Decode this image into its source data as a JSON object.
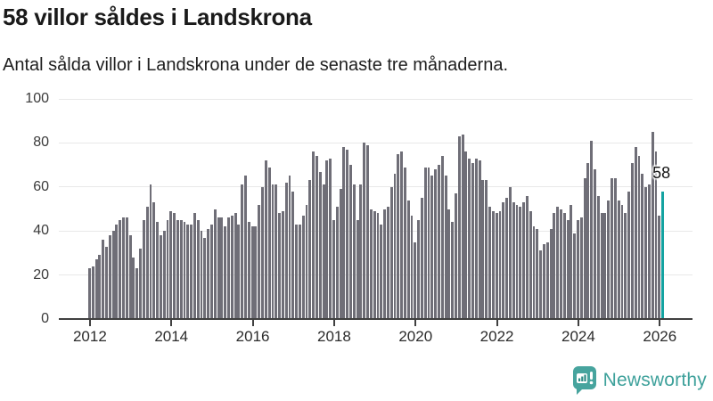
{
  "header": {
    "title": "58 villor såldes i Landskrona",
    "subtitle": "Antal sålda villor i Landskrona under de senaste tre månaderna."
  },
  "annotation": {
    "label": "58"
  },
  "branding": {
    "name": "Newsworthy",
    "icon": "bar-chart-speech-bubble-icon"
  },
  "colors": {
    "bar": "#6f6e77",
    "highlight": "#14a3a1",
    "gridline": "#e8e8e8",
    "axis": "#404040",
    "brand_teal": "#3ea19b"
  },
  "chart_data": {
    "type": "bar",
    "title": "58 villor såldes i Landskrona",
    "subtitle": "Antal sålda villor i Landskrona under de senaste tre månaderna.",
    "x_unit": "månad",
    "x_range": [
      "2012",
      "2026"
    ],
    "y_ticks": [
      0,
      20,
      40,
      60,
      80,
      100
    ],
    "ylim": [
      0,
      100
    ],
    "grid": true,
    "x_tick_labels": [
      "2012",
      "2014",
      "2016",
      "2018",
      "2020",
      "2022",
      "2024",
      "2026"
    ],
    "x_tick_indices": [
      0,
      24,
      48,
      72,
      96,
      120,
      144,
      168
    ],
    "values": [
      23,
      24,
      27,
      29,
      36,
      33,
      38,
      40,
      43,
      45,
      46,
      46,
      38,
      28,
      23,
      32,
      45,
      51,
      61,
      53,
      44,
      38,
      40,
      45,
      49,
      48,
      45,
      45,
      44,
      43,
      43,
      48,
      45,
      40,
      37,
      41,
      43,
      50,
      46,
      46,
      42,
      46,
      47,
      48,
      43,
      61,
      65,
      44,
      42,
      42,
      52,
      60,
      72,
      69,
      61,
      61,
      48,
      49,
      62,
      65,
      58,
      43,
      43,
      47,
      52,
      63,
      76,
      74,
      67,
      61,
      72,
      73,
      45,
      51,
      59,
      78,
      77,
      70,
      61,
      45,
      61,
      80,
      79,
      50,
      49,
      48,
      43,
      50,
      51,
      60,
      66,
      75,
      76,
      69,
      54,
      47,
      35,
      45,
      55,
      69,
      69,
      65,
      68,
      70,
      74,
      65,
      50,
      44,
      57,
      83,
      84,
      76,
      73,
      71,
      73,
      72,
      63,
      63,
      51,
      49,
      48,
      49,
      53,
      55,
      60,
      53,
      52,
      51,
      53,
      56,
      49,
      42,
      41,
      31,
      34,
      35,
      41,
      48,
      51,
      50,
      48,
      45,
      52,
      39,
      45,
      46,
      64,
      71,
      81,
      68,
      56,
      48,
      48,
      54,
      64,
      64,
      54,
      52,
      48,
      58,
      71,
      78,
      74,
      66,
      60,
      61,
      85,
      76,
      47,
      58
    ],
    "highlight_index": 169,
    "highlight_value": 58,
    "highlight_label": "58"
  }
}
